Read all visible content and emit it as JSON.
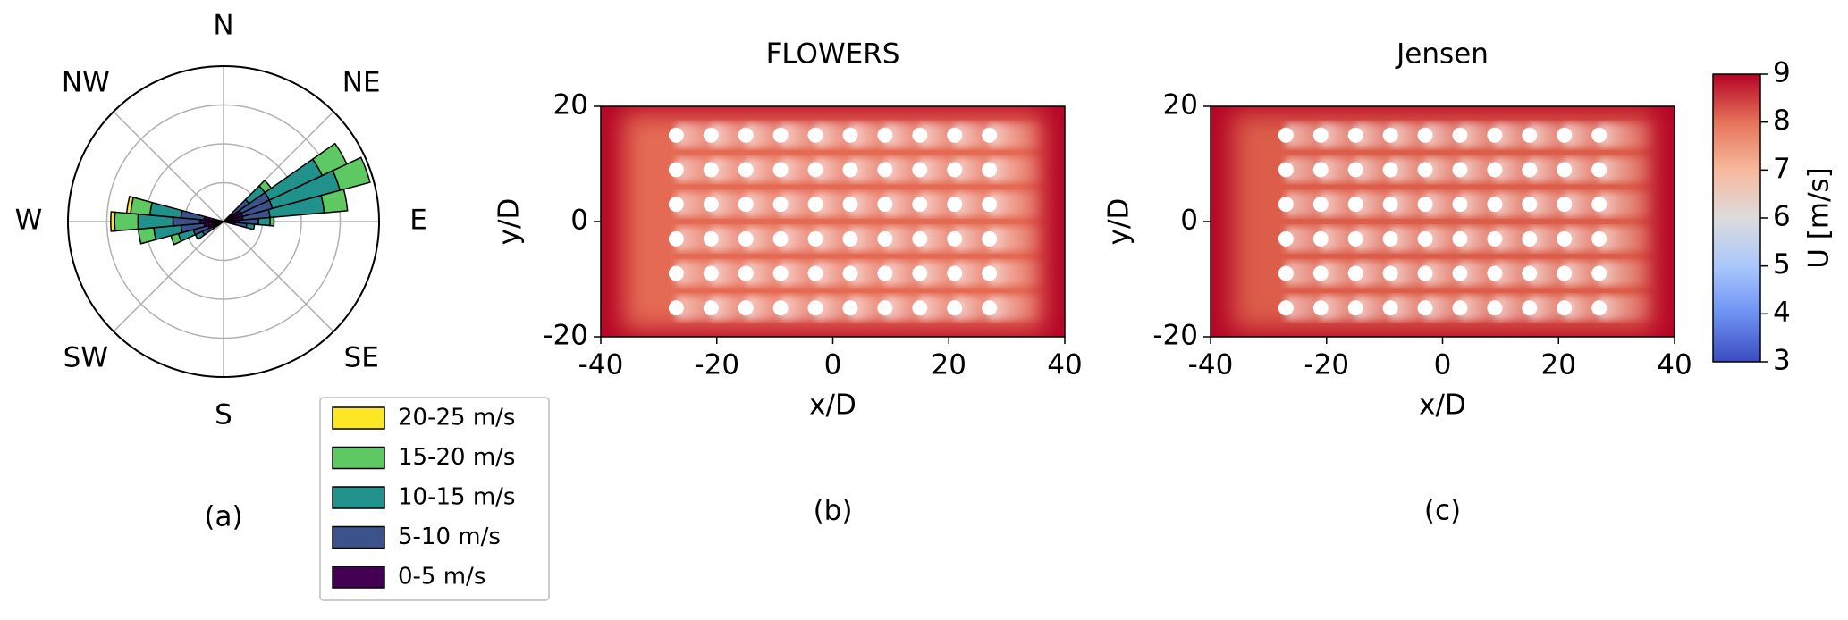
{
  "chart_data": [
    {
      "type": "windrose",
      "label": "(a)",
      "legend": "lower right",
      "directions": [
        50,
        60,
        70,
        80,
        90,
        100,
        240,
        250,
        260,
        270,
        280
      ],
      "series": [
        {
          "name": "0-5 m/s",
          "color": "#440154",
          "values": [
            0.3,
            0.5,
            0.5,
            0.5,
            0.4,
            0.3,
            0.3,
            0.4,
            0.5,
            0.6,
            0.5
          ]
        },
        {
          "name": "5-10 m/s",
          "color": "#3b528b",
          "values": [
            0.5,
            0.8,
            0.8,
            0.7,
            0.5,
            0.3,
            0.3,
            0.4,
            0.6,
            0.7,
            0.6
          ]
        },
        {
          "name": "10-15 m/s",
          "color": "#21918c",
          "values": [
            0.5,
            1.5,
            1.8,
            1.4,
            0.3,
            0.2,
            0.2,
            0.4,
            0.7,
            0.9,
            0.8
          ]
        },
        {
          "name": "15-20 m/s",
          "color": "#5ec962",
          "values": [
            0.2,
            0.7,
            0.8,
            0.6,
            0.1,
            0,
            0,
            0.2,
            0.4,
            0.6,
            0.5
          ]
        },
        {
          "name": "20-25 m/s",
          "color": "#fde725",
          "values": [
            0,
            0,
            0,
            0,
            0,
            0,
            0,
            0,
            0,
            0.1,
            0.1
          ]
        }
      ],
      "rlim": [
        0,
        4
      ],
      "rticks": [
        1,
        2,
        3,
        4
      ],
      "thetaticks": [
        {
          "value": 0,
          "label": "N"
        },
        {
          "value": 45,
          "label": "NE"
        },
        {
          "value": 90,
          "label": "E"
        },
        {
          "value": 135,
          "label": "SE"
        },
        {
          "value": 180,
          "label": "S"
        },
        {
          "value": 225,
          "label": "SW"
        },
        {
          "value": 270,
          "label": "W"
        },
        {
          "value": 315,
          "label": "NW"
        }
      ]
    },
    {
      "type": "heatmap",
      "title": "FLOWERS",
      "label": "(b)",
      "xlabel": "x/D",
      "ylabel": "y/D",
      "xlim": [
        -40,
        40
      ],
      "ylim": [
        -20,
        20
      ],
      "xticks": [
        -40,
        -20,
        0,
        20,
        40
      ],
      "yticks": [
        -20,
        0,
        20
      ],
      "turbines": {
        "x": [
          -27,
          -21,
          -15,
          -9,
          -3,
          3,
          9,
          15,
          21,
          27
        ],
        "y": [
          15,
          9,
          3,
          -3,
          -9,
          -15
        ]
      }
    },
    {
      "type": "heatmap",
      "title": "Jensen",
      "label": "(c)",
      "xlabel": "x/D",
      "ylabel": "y/D",
      "xlim": [
        -40,
        40
      ],
      "ylim": [
        -20,
        20
      ],
      "xticks": [
        -40,
        -20,
        0,
        20,
        40
      ],
      "yticks": [
        -20,
        0,
        20
      ],
      "turbines": {
        "x": [
          -27,
          -21,
          -15,
          -9,
          -3,
          3,
          9,
          15,
          21,
          27
        ],
        "y": [
          15,
          9,
          3,
          -3,
          -9,
          -15
        ]
      }
    },
    {
      "type": "colorbar",
      "label": "U [m/s]",
      "colormap": "coolwarm",
      "lim": [
        3,
        9
      ],
      "ticks": [
        3,
        4,
        5,
        6,
        7,
        8,
        9
      ]
    }
  ]
}
